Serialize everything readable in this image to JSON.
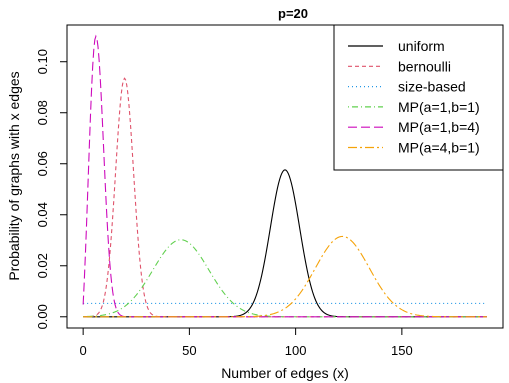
{
  "chart_data": {
    "type": "line",
    "title": "p=20",
    "xlabel": "Number of edges (x)",
    "ylabel": "Probability of graphs with x edges",
    "xlim": [
      -7.6,
      197.6
    ],
    "ylim": [
      -0.0044,
      0.1144
    ],
    "x_ticks": [
      0,
      50,
      100,
      150
    ],
    "x_tick_labels": [
      "0",
      "50",
      "100",
      "150"
    ],
    "y_ticks": [
      0.0,
      0.02,
      0.04,
      0.06,
      0.08,
      0.1
    ],
    "y_tick_labels": [
      "0.00",
      "0.02",
      "0.04",
      "0.06",
      "0.08",
      "0.10"
    ],
    "x_domain": [
      0,
      190
    ],
    "grid": false,
    "legend_position": "top-right",
    "series": [
      {
        "name": "uniform",
        "color": "#000000",
        "dash": "solid",
        "dist": "normal",
        "mean": 95,
        "sd": 6.89,
        "peak": 0.0576
      },
      {
        "name": "bernoulli",
        "color": "#DF536B",
        "dash": "4,3",
        "dist": "normal",
        "mean": 19.5,
        "sd": 4.24,
        "peak": 0.0935
      },
      {
        "name": "size-based",
        "color": "#2297E6",
        "dash": "1,3",
        "dist": "uniform",
        "value": 0.00524
      },
      {
        "name": "MP(a=1,b=1)",
        "color": "#61D04F",
        "dash": "1,3,6,3",
        "dist": "normal",
        "mean": 46,
        "sd": 13.2,
        "peak": 0.0302
      },
      {
        "name": "MP(a=1,b=4)",
        "color": "#CD0BBC",
        "dash": "9,4",
        "dist": "normal",
        "mean": 6,
        "sd": 3.6,
        "peak": 0.11,
        "start": 0.0048
      },
      {
        "name": "MP(a=4,b=1)",
        "color": "#F5A30A",
        "dash": "9,3,2,3",
        "dist": "normal",
        "mean": 122,
        "sd": 12.7,
        "peak": 0.0315
      }
    ]
  }
}
